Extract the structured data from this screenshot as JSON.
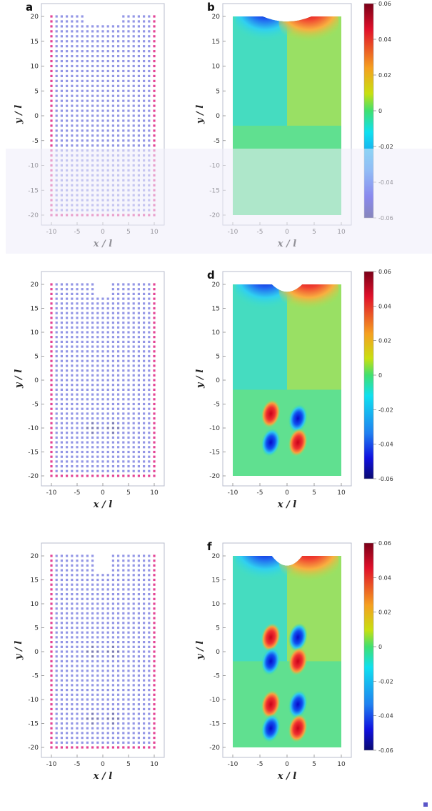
{
  "panels": [
    {
      "label": "a",
      "kind": "lattice",
      "defects": []
    },
    {
      "label": "b",
      "kind": "map",
      "sources": []
    },
    {
      "label": "",
      "kind": "lattice",
      "defects": [
        [
          -2,
          -10
        ],
        [
          2,
          -10
        ]
      ]
    },
    {
      "label": "d",
      "kind": "map",
      "sources": [
        [
          -3,
          -7,
          1
        ],
        [
          2,
          -8,
          -1
        ],
        [
          -3,
          -13,
          -1
        ],
        [
          2,
          -13,
          1
        ]
      ]
    },
    {
      "label": "",
      "kind": "lattice",
      "defects": [
        [
          -2,
          0
        ],
        [
          2,
          0
        ],
        [
          -2,
          -14
        ],
        [
          2,
          -14
        ]
      ]
    },
    {
      "label": "f",
      "kind": "map",
      "sources": [
        [
          -3,
          3,
          1
        ],
        [
          2,
          3,
          -1
        ],
        [
          -3,
          -2,
          -1
        ],
        [
          2,
          -2,
          1
        ],
        [
          -3,
          -11,
          1
        ],
        [
          2,
          -11,
          -1
        ],
        [
          -3,
          -16,
          -1
        ],
        [
          2,
          -16,
          1
        ]
      ]
    }
  ],
  "axes": {
    "xlabel": "x / l",
    "ylabel": "y / l",
    "xlim": [
      -10,
      10
    ],
    "ylim": [
      -20,
      20
    ],
    "xticks": [
      "-10",
      "-5",
      "0",
      "5",
      "10"
    ],
    "yticks": [
      "20",
      "15",
      "10",
      "5",
      "0",
      "-5",
      "-10",
      "-15",
      "-20"
    ]
  },
  "colorbar": {
    "ticks": [
      "0.06",
      "0.04",
      "0.02",
      "0",
      "-0.02",
      "-0.04",
      "-0.06"
    ],
    "range": [
      -0.06,
      0.06
    ]
  },
  "colors": {
    "lattice_dot": "#3b3fd1",
    "lattice_edge_dot": "#e0308a",
    "defect_dot": "#12127a",
    "frame": "#b8bccc"
  }
}
